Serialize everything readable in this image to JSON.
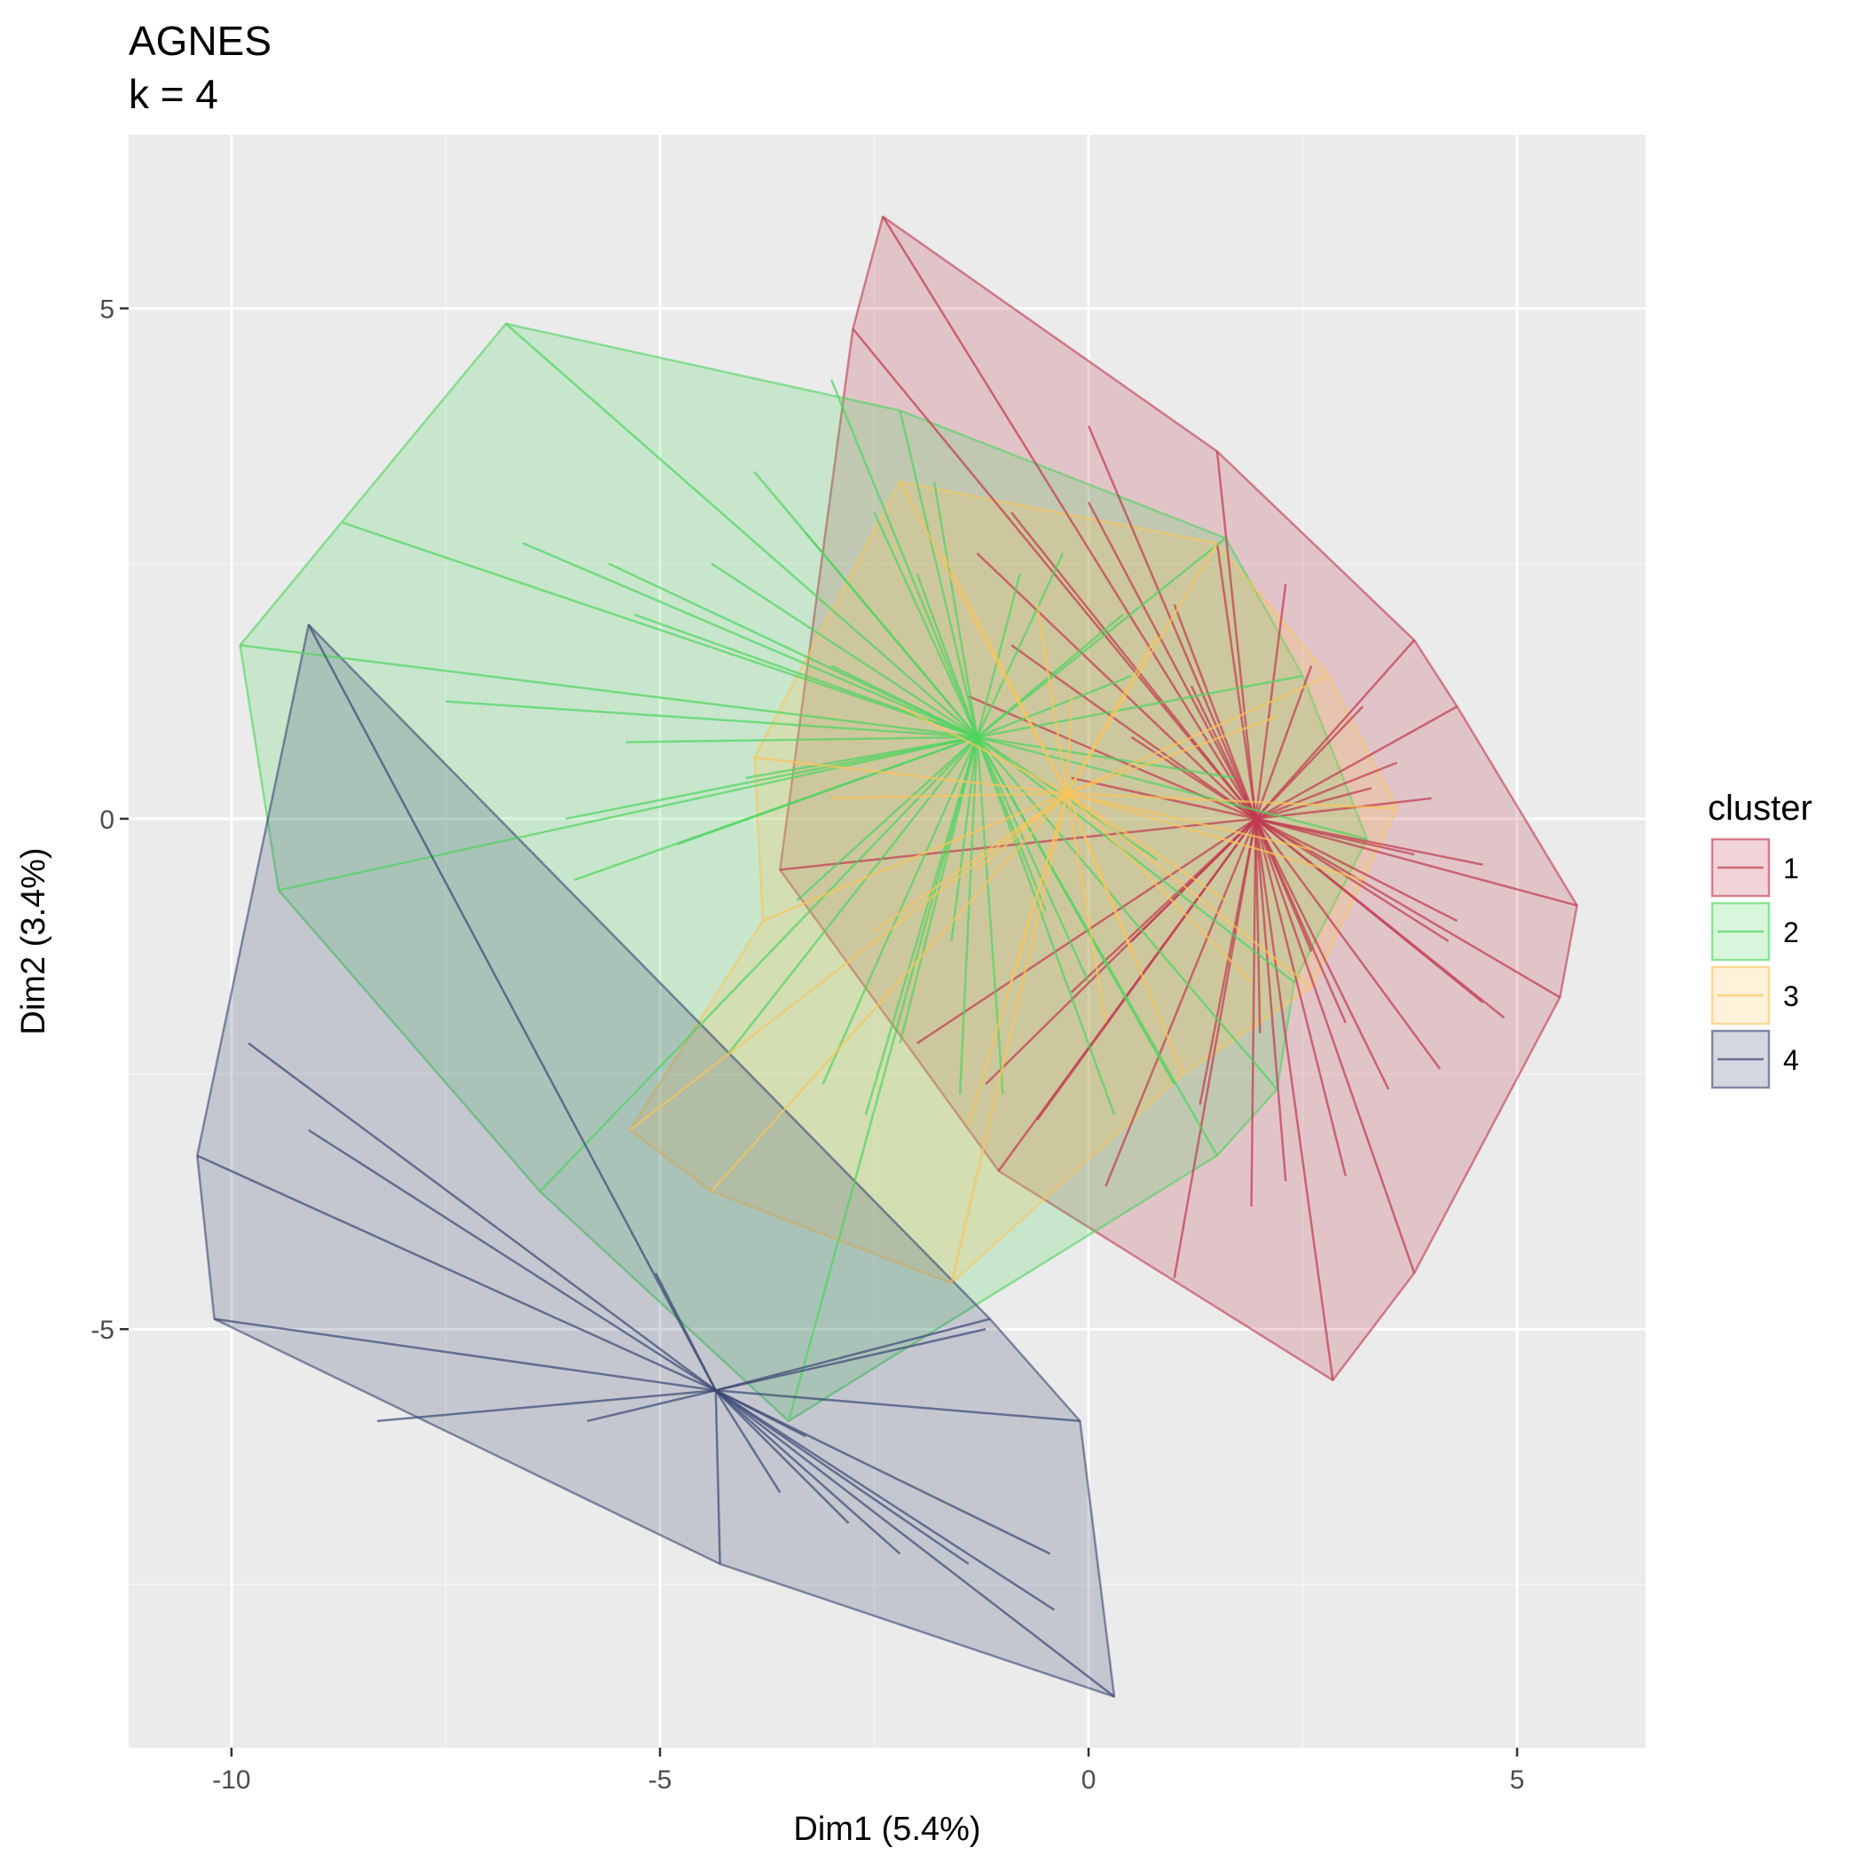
{
  "chart_data": {
    "type": "scatter",
    "title": [
      "AGNES",
      "k = 4"
    ],
    "xlabel": "Dim1 (5.4%)",
    "ylabel": "Dim2 (3.4%)",
    "xlim": [
      -11.2,
      6.5
    ],
    "ylim": [
      -9.1,
      6.7
    ],
    "xticks": [
      -10,
      -5,
      0,
      5
    ],
    "xtick_labels": [
      "-10",
      "-5",
      "0",
      "5"
    ],
    "yticks": [
      -5,
      0,
      5
    ],
    "ytick_labels": [
      "-5",
      "0",
      "5"
    ],
    "grid": true,
    "legend": {
      "title": "cluster",
      "position": "right"
    },
    "clusters": [
      {
        "name": "1",
        "color": "#C0394E",
        "center": [
          1.95,
          0.0
        ],
        "hull": [
          [
            -2.4,
            5.9
          ],
          [
            1.5,
            3.6
          ],
          [
            3.8,
            1.75
          ],
          [
            4.3,
            1.1
          ],
          [
            5.7,
            -0.85
          ],
          [
            5.5,
            -1.75
          ],
          [
            3.8,
            -4.45
          ],
          [
            2.85,
            -5.5
          ],
          [
            -1.05,
            -3.45
          ],
          [
            -3.6,
            -0.5
          ],
          [
            -2.75,
            4.8
          ]
        ],
        "points": [
          [
            -2.4,
            5.9
          ],
          [
            1.5,
            3.6
          ],
          [
            3.8,
            1.75
          ],
          [
            4.3,
            1.1
          ],
          [
            5.7,
            -0.85
          ],
          [
            5.5,
            -1.75
          ],
          [
            3.8,
            -4.45
          ],
          [
            2.85,
            -5.5
          ],
          [
            -1.05,
            -3.45
          ],
          [
            -3.6,
            -0.5
          ],
          [
            -2.75,
            4.8
          ],
          [
            0.0,
            3.85
          ],
          [
            0.0,
            3.1
          ],
          [
            -0.9,
            3.0
          ],
          [
            -1.3,
            2.6
          ],
          [
            1.0,
            2.1
          ],
          [
            2.3,
            2.3
          ],
          [
            2.6,
            1.5
          ],
          [
            3.2,
            1.1
          ],
          [
            4.0,
            0.2
          ],
          [
            3.3,
            0.3
          ],
          [
            4.6,
            -0.45
          ],
          [
            4.3,
            -1.0
          ],
          [
            4.6,
            -1.8
          ],
          [
            4.85,
            -1.95
          ],
          [
            4.1,
            -2.45
          ],
          [
            3.5,
            -2.65
          ],
          [
            3.0,
            -3.5
          ],
          [
            2.3,
            -3.55
          ],
          [
            1.9,
            -3.8
          ],
          [
            1.0,
            -4.5
          ],
          [
            0.2,
            -3.6
          ],
          [
            -0.6,
            -2.95
          ],
          [
            -1.2,
            -2.6
          ],
          [
            -2.0,
            -2.2
          ],
          [
            -0.2,
            -1.7
          ],
          [
            0.5,
            -1.2
          ],
          [
            -0.9,
            1.7
          ],
          [
            -1.4,
            1.2
          ],
          [
            3.8,
            -0.35
          ],
          [
            4.2,
            -1.2
          ],
          [
            3.0,
            -2.0
          ],
          [
            2.0,
            -2.1
          ],
          [
            1.3,
            -2.8
          ],
          [
            2.6,
            -1.3
          ],
          [
            0.5,
            0.8
          ],
          [
            1.2,
            1.3
          ],
          [
            -0.2,
            0.4
          ],
          [
            3.6,
            0.55
          ],
          [
            1.5,
            2.7
          ]
        ]
      },
      {
        "name": "2",
        "color": "#4ED45F",
        "center": [
          -1.3,
          0.8
        ],
        "hull": [
          [
            -6.8,
            4.85
          ],
          [
            -2.2,
            4.0
          ],
          [
            1.6,
            2.75
          ],
          [
            2.5,
            1.4
          ],
          [
            3.25,
            -0.2
          ],
          [
            2.4,
            -1.6
          ],
          [
            2.2,
            -2.65
          ],
          [
            1.5,
            -3.3
          ],
          [
            -3.5,
            -5.9
          ],
          [
            -6.4,
            -3.65
          ],
          [
            -9.45,
            -0.7
          ],
          [
            -9.9,
            1.7
          ]
        ],
        "points": [
          [
            -6.8,
            4.85
          ],
          [
            -2.2,
            4.0
          ],
          [
            1.6,
            2.75
          ],
          [
            2.5,
            1.4
          ],
          [
            3.25,
            -0.2
          ],
          [
            2.4,
            -1.6
          ],
          [
            2.2,
            -2.65
          ],
          [
            1.5,
            -3.3
          ],
          [
            -3.5,
            -5.9
          ],
          [
            -6.4,
            -3.65
          ],
          [
            -9.45,
            -0.7
          ],
          [
            -9.9,
            1.7
          ],
          [
            -8.7,
            2.9
          ],
          [
            -6.6,
            2.7
          ],
          [
            -5.6,
            2.5
          ],
          [
            -4.4,
            2.5
          ],
          [
            -5.3,
            2.0
          ],
          [
            -7.5,
            1.15
          ],
          [
            -5.4,
            0.75
          ],
          [
            -6.1,
            0.0
          ],
          [
            -4.8,
            -0.25
          ],
          [
            -6.0,
            -0.6
          ],
          [
            -3.4,
            -0.8
          ],
          [
            -4.2,
            -2.3
          ],
          [
            -3.1,
            -2.6
          ],
          [
            -2.6,
            -2.9
          ],
          [
            -1.5,
            -2.7
          ],
          [
            -2.2,
            -2.2
          ],
          [
            -1.0,
            -2.7
          ],
          [
            0.3,
            -2.9
          ],
          [
            1.0,
            -2.6
          ],
          [
            0.0,
            -1.6
          ],
          [
            -0.5,
            -0.9
          ],
          [
            0.8,
            -0.4
          ],
          [
            1.7,
            0.4
          ],
          [
            0.5,
            1.4
          ],
          [
            0.4,
            2.0
          ],
          [
            -0.3,
            2.6
          ],
          [
            -0.8,
            2.4
          ],
          [
            -1.8,
            3.3
          ],
          [
            -3.3,
            2.8
          ],
          [
            -3.9,
            3.4
          ],
          [
            -3.0,
            4.3
          ],
          [
            -2.5,
            3.0
          ],
          [
            -2.0,
            2.4
          ],
          [
            -1.6,
            -1.2
          ],
          [
            -3.0,
            1.5
          ],
          [
            -4.0,
            0.4
          ]
        ]
      },
      {
        "name": "3",
        "color": "#FAC45A",
        "center": [
          -0.25,
          0.25
        ],
        "hull": [
          [
            -2.2,
            3.3
          ],
          [
            1.5,
            2.7
          ],
          [
            2.8,
            1.4
          ],
          [
            3.6,
            0.1
          ],
          [
            3.2,
            -0.6
          ],
          [
            2.6,
            -1.65
          ],
          [
            1.1,
            -2.5
          ],
          [
            -1.6,
            -4.55
          ],
          [
            -4.4,
            -3.65
          ],
          [
            -5.35,
            -3.05
          ],
          [
            -3.8,
            -1.0
          ],
          [
            -3.9,
            0.6
          ]
        ],
        "points": [
          [
            -2.2,
            3.3
          ],
          [
            1.5,
            2.7
          ],
          [
            2.8,
            1.4
          ],
          [
            3.6,
            0.1
          ],
          [
            3.2,
            -0.6
          ],
          [
            2.6,
            -1.65
          ],
          [
            1.1,
            -2.5
          ],
          [
            -1.6,
            -4.55
          ],
          [
            -4.4,
            -3.65
          ],
          [
            -5.35,
            -3.05
          ],
          [
            -3.8,
            -1.0
          ],
          [
            -3.9,
            0.6
          ],
          [
            -1.7,
            2.6
          ],
          [
            -0.6,
            2.1
          ],
          [
            0.8,
            1.8
          ],
          [
            2.2,
            1.0
          ],
          [
            2.6,
            -0.3
          ],
          [
            1.6,
            -0.8
          ],
          [
            0.5,
            -1.3
          ],
          [
            -0.9,
            -1.6
          ],
          [
            -2.5,
            -1.1
          ],
          [
            -1.3,
            -0.5
          ],
          [
            -3.0,
            0.2
          ],
          [
            -2.2,
            1.1
          ],
          [
            0.2,
            -2.0
          ],
          [
            -1.4,
            -3.0
          ],
          [
            1.9,
            -1.6
          ],
          [
            -0.2,
            1.2
          ]
        ]
      },
      {
        "name": "4",
        "color": "#3B4873",
        "center": [
          -4.35,
          -5.6
        ],
        "hull": [
          [
            -9.1,
            1.9
          ],
          [
            -1.15,
            -4.9
          ],
          [
            -0.1,
            -5.9
          ],
          [
            0.3,
            -8.6
          ],
          [
            -4.3,
            -7.3
          ],
          [
            -10.2,
            -4.9
          ],
          [
            -10.4,
            -3.3
          ]
        ],
        "points": [
          [
            -9.1,
            1.9
          ],
          [
            -1.15,
            -4.9
          ],
          [
            -0.1,
            -5.9
          ],
          [
            0.3,
            -8.6
          ],
          [
            -4.3,
            -7.3
          ],
          [
            -10.2,
            -4.9
          ],
          [
            -10.4,
            -3.3
          ],
          [
            -9.8,
            -2.2
          ],
          [
            -9.1,
            -3.05
          ],
          [
            -8.3,
            -5.9
          ],
          [
            -5.85,
            -5.9
          ],
          [
            -5.05,
            -4.45
          ],
          [
            -1.2,
            -5.0
          ],
          [
            -3.3,
            -6.05
          ],
          [
            -3.6,
            -6.6
          ],
          [
            -2.8,
            -6.9
          ],
          [
            -2.2,
            -7.2
          ],
          [
            -1.4,
            -7.3
          ],
          [
            -0.45,
            -7.2
          ],
          [
            -0.4,
            -7.75
          ]
        ]
      }
    ]
  }
}
